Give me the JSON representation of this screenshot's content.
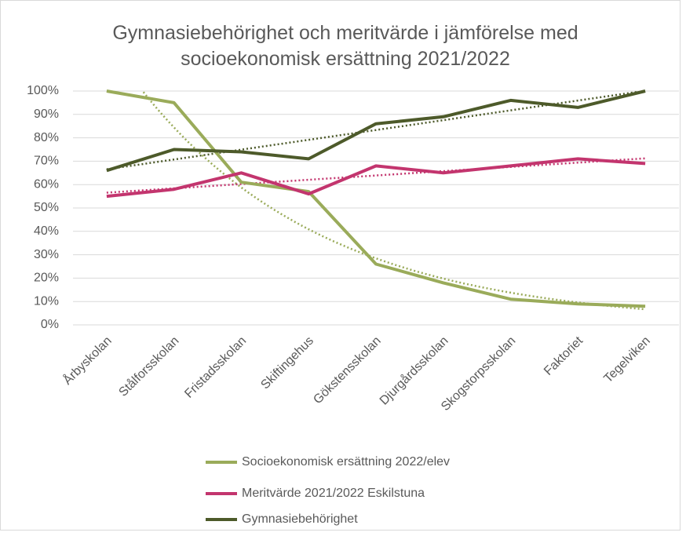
{
  "chart_data": {
    "type": "line",
    "title": "Gymnasiebehörighet och meritvärde i jämförelse med socioekonomisk ersättning 2021/2022",
    "categories": [
      "Årbyskolan",
      "Stålforsskolan",
      "Fristadsskolan",
      "Skiftingehus",
      "Gökstensskolan",
      "Djurgårdsskolan",
      "Skogstorpsskolan",
      "Faktoriet",
      "Tegelviken"
    ],
    "series": [
      {
        "name": "Socioekonomisk ersättning 2022/elev",
        "color": "#9aab5a",
        "trendline": "exponential",
        "values": [
          100,
          95,
          61,
          57,
          26,
          18,
          11,
          9,
          8
        ]
      },
      {
        "name": "Meritvärde 2021/2022 Eskilstuna",
        "color": "#c3356e",
        "trendline": "linear",
        "values": [
          55,
          58,
          65,
          56,
          68,
          65,
          68,
          71,
          69
        ]
      },
      {
        "name": "Gymnasiebehörighet",
        "color": "#4d5a2a",
        "trendline": "linear",
        "values": [
          66,
          75,
          74,
          71,
          86,
          89,
          96,
          93,
          100
        ]
      }
    ],
    "ylim": [
      0,
      100
    ],
    "yticks": [
      {
        "value": 0,
        "label": "0%"
      },
      {
        "value": 10,
        "label": "10%"
      },
      {
        "value": 20,
        "label": "20%"
      },
      {
        "value": 30,
        "label": "30%"
      },
      {
        "value": 40,
        "label": "40%"
      },
      {
        "value": 50,
        "label": "50%"
      },
      {
        "value": 60,
        "label": "60%"
      },
      {
        "value": 70,
        "label": "70%"
      },
      {
        "value": 80,
        "label": "80%"
      },
      {
        "value": 90,
        "label": "90%"
      },
      {
        "value": 100,
        "label": "100%"
      }
    ],
    "grid": true,
    "legend": "bottom"
  }
}
